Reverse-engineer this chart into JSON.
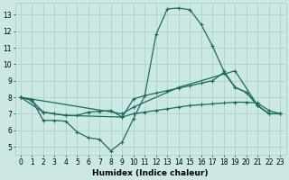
{
  "xlabel": "Humidex (Indice chaleur)",
  "bg_color": "#cce8e4",
  "grid_color": "#aaccc8",
  "line_color": "#1a6b5e",
  "xlim": [
    -0.5,
    23.5
  ],
  "ylim": [
    4.5,
    13.7
  ],
  "yticks": [
    5,
    6,
    7,
    8,
    9,
    10,
    11,
    12,
    13
  ],
  "xticks": [
    0,
    1,
    2,
    3,
    4,
    5,
    6,
    7,
    8,
    9,
    10,
    11,
    12,
    13,
    14,
    15,
    16,
    17,
    18,
    19,
    20,
    21,
    22,
    23
  ],
  "line1_x": [
    0,
    1,
    2,
    3,
    4,
    5,
    6,
    7,
    8,
    9,
    10,
    11,
    12,
    13,
    14,
    15,
    16,
    17,
    18,
    19,
    20,
    21,
    22,
    23
  ],
  "line1_y": [
    8.0,
    7.85,
    6.6,
    6.6,
    6.55,
    5.9,
    5.55,
    5.45,
    4.75,
    5.3,
    6.7,
    8.1,
    11.8,
    13.35,
    13.4,
    13.3,
    12.4,
    11.1,
    9.6,
    8.6,
    8.3,
    7.5,
    7.0,
    7.0
  ],
  "line2_x": [
    0,
    1,
    2,
    3,
    4,
    5,
    6,
    7,
    8,
    9,
    10,
    11,
    12,
    13,
    14,
    15,
    16,
    17,
    18,
    19,
    20,
    21,
    22,
    23
  ],
  "line2_y": [
    8.0,
    7.8,
    7.1,
    7.0,
    6.9,
    6.9,
    7.1,
    7.15,
    7.2,
    6.8,
    7.9,
    8.1,
    8.25,
    8.4,
    8.55,
    8.7,
    8.85,
    9.0,
    9.5,
    8.6,
    8.3,
    7.5,
    7.0,
    7.0
  ],
  "line3_x": [
    0,
    2,
    3,
    4,
    9,
    10,
    11,
    12,
    13,
    14,
    15,
    16,
    17,
    18,
    19,
    20,
    21,
    22,
    23
  ],
  "line3_y": [
    8.0,
    7.1,
    7.0,
    6.9,
    6.8,
    7.0,
    7.1,
    7.2,
    7.3,
    7.4,
    7.5,
    7.55,
    7.6,
    7.65,
    7.7,
    7.7,
    7.65,
    7.2,
    7.0
  ],
  "line4_x": [
    0,
    9,
    10,
    14,
    19,
    21,
    22,
    23
  ],
  "line4_y": [
    8.0,
    7.0,
    7.4,
    8.6,
    9.6,
    7.5,
    7.0,
    7.0
  ]
}
